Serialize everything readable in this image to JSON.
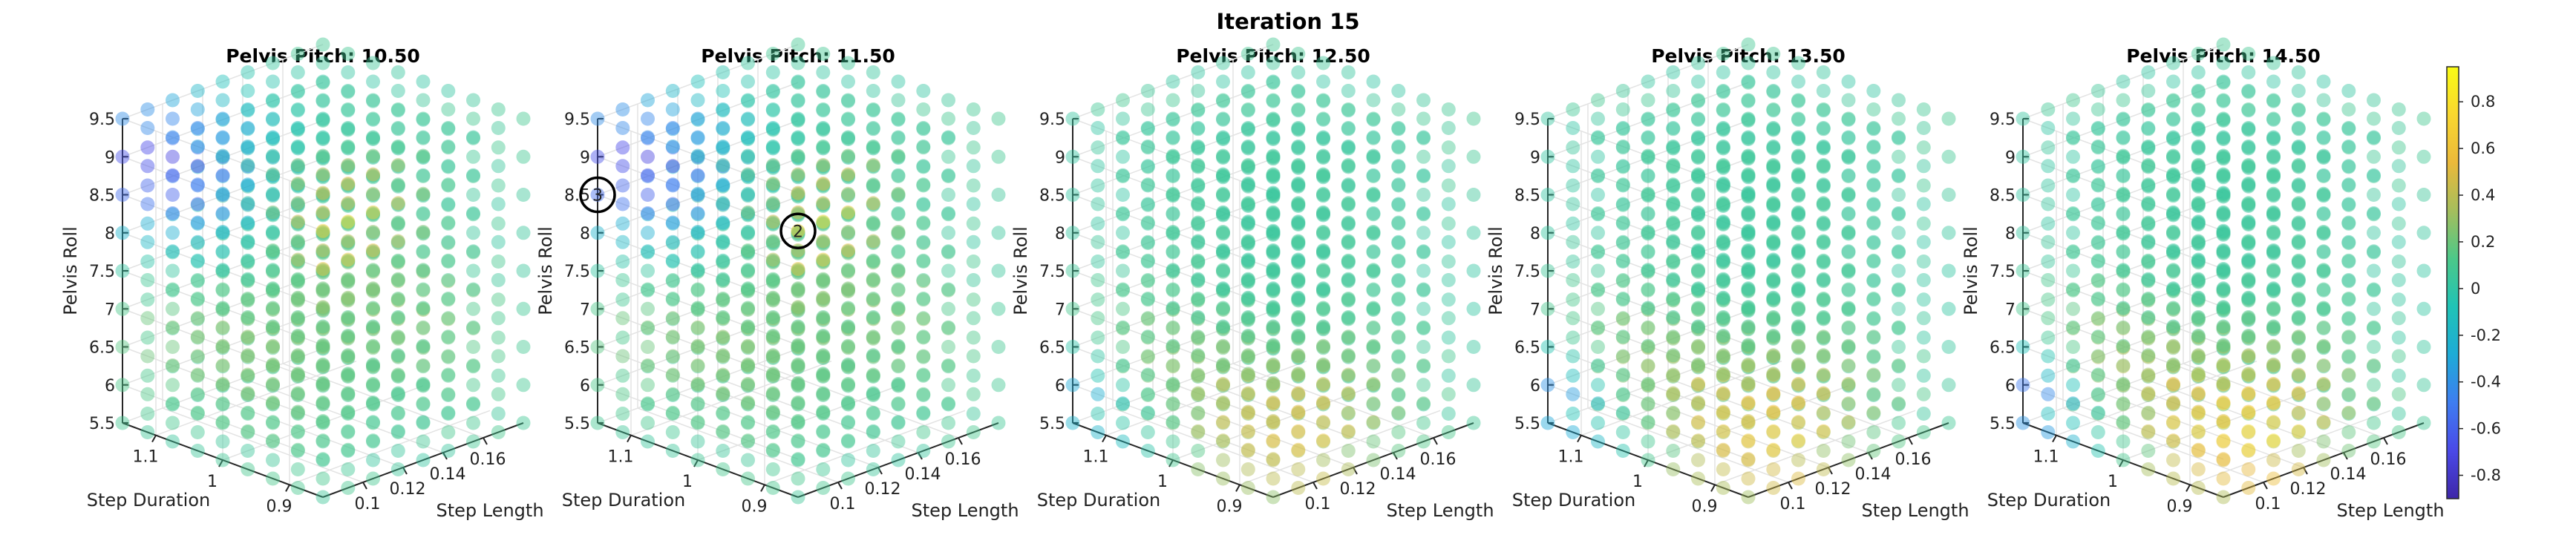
{
  "figure": {
    "title": "Iteration 15"
  },
  "chart_data": {
    "type": "scatter3d",
    "grid": true,
    "axes": {
      "x": {
        "label": "Step Length",
        "range": [
          0.08,
          0.18
        ],
        "ticks": [
          "0.1",
          "0.12",
          "0.14",
          "0.16"
        ]
      },
      "y": {
        "label": "Step Duration",
        "range": [
          0.85,
          1.15
        ],
        "ticks": [
          "0.9",
          "1",
          "1.1"
        ]
      },
      "z": {
        "label": "Pelvis Roll",
        "range": [
          5.5,
          9.5
        ],
        "ticks": [
          "5.5",
          "6",
          "6.5",
          "7",
          "7.5",
          "8",
          "8.5",
          "9",
          "9.5"
        ]
      }
    },
    "grid_points": {
      "step_length_count": 9,
      "step_duration_count": 9,
      "pelvis_roll_count": 9
    },
    "colorbar": {
      "range": [
        -0.9,
        0.95
      ],
      "ticks": [
        "0.8",
        "0.6",
        "0.4",
        "0.2",
        "0",
        "-0.2",
        "-0.4",
        "-0.6",
        "-0.8"
      ],
      "colormap": [
        "#3e26a8",
        "#4a49e8",
        "#3e7df0",
        "#1eabd7",
        "#20c3b6",
        "#4cc889",
        "#a5be5c",
        "#ebb93a",
        "#f9d72f",
        "#f9fb15"
      ]
    },
    "panels": [
      {
        "title": "Pelvis Pitch: 10.50",
        "pitch": 10.5,
        "hotspot": "top",
        "markers": []
      },
      {
        "title": "Pelvis Pitch: 11.50",
        "pitch": 11.5,
        "hotspot": "top",
        "markers": [
          {
            "label": "2",
            "sl": 0.08,
            "sd": 0.85,
            "pr": 9.0
          },
          {
            "label": "3",
            "sl": 0.08,
            "sd": 1.15,
            "pr": 8.5
          }
        ]
      },
      {
        "title": "Pelvis Pitch: 12.50",
        "pitch": 12.5,
        "hotspot": "low",
        "markers": []
      },
      {
        "title": "Pelvis Pitch: 13.50",
        "pitch": 13.5,
        "hotspot": "low",
        "markers": []
      },
      {
        "title": "Pelvis Pitch: 14.50",
        "pitch": 14.5,
        "hotspot": "low",
        "markers": []
      }
    ]
  }
}
